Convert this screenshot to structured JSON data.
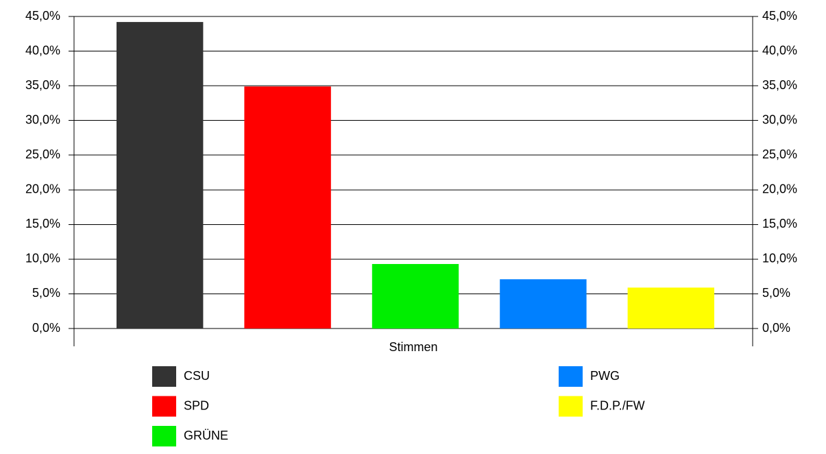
{
  "chart_data": {
    "type": "bar",
    "categories": [
      "Stimmen"
    ],
    "series": [
      {
        "name": "CSU",
        "color": "#333333",
        "values": [
          44.2
        ]
      },
      {
        "name": "SPD",
        "color": "#ff0000",
        "values": [
          34.9
        ]
      },
      {
        "name": "GRÜNE",
        "color": "#00ee00",
        "values": [
          9.3
        ]
      },
      {
        "name": "PWG",
        "color": "#0080ff",
        "values": [
          7.1
        ]
      },
      {
        "name": "F.D.P./FW",
        "color": "#ffff00",
        "values": [
          5.9
        ]
      }
    ],
    "ylim": [
      0,
      45
    ],
    "yticks": [
      {
        "value": 0,
        "label": "0,0%"
      },
      {
        "value": 5,
        "label": "5,0%"
      },
      {
        "value": 10,
        "label": "10,0%"
      },
      {
        "value": 15,
        "label": "15,0%"
      },
      {
        "value": 20,
        "label": "20,0%"
      },
      {
        "value": 25,
        "label": "25,0%"
      },
      {
        "value": 30,
        "label": "30,0%"
      },
      {
        "value": 35,
        "label": "35,0%"
      },
      {
        "value": 40,
        "label": "40,0%"
      },
      {
        "value": 45,
        "label": "45,0%"
      }
    ],
    "y2lim": [
      0,
      45
    ],
    "y2ticks": [
      {
        "value": 0,
        "label": "0,0%"
      },
      {
        "value": 5,
        "label": "5,0%"
      },
      {
        "value": 10,
        "label": "10,0%"
      },
      {
        "value": 15,
        "label": "15,0%"
      },
      {
        "value": 20,
        "label": "20,0%"
      },
      {
        "value": 25,
        "label": "25,0%"
      },
      {
        "value": 30,
        "label": "30,0%"
      },
      {
        "value": 35,
        "label": "35,0%"
      },
      {
        "value": 40,
        "label": "40,0%"
      },
      {
        "value": 45,
        "label": "45,0%"
      }
    ],
    "grid": true
  }
}
